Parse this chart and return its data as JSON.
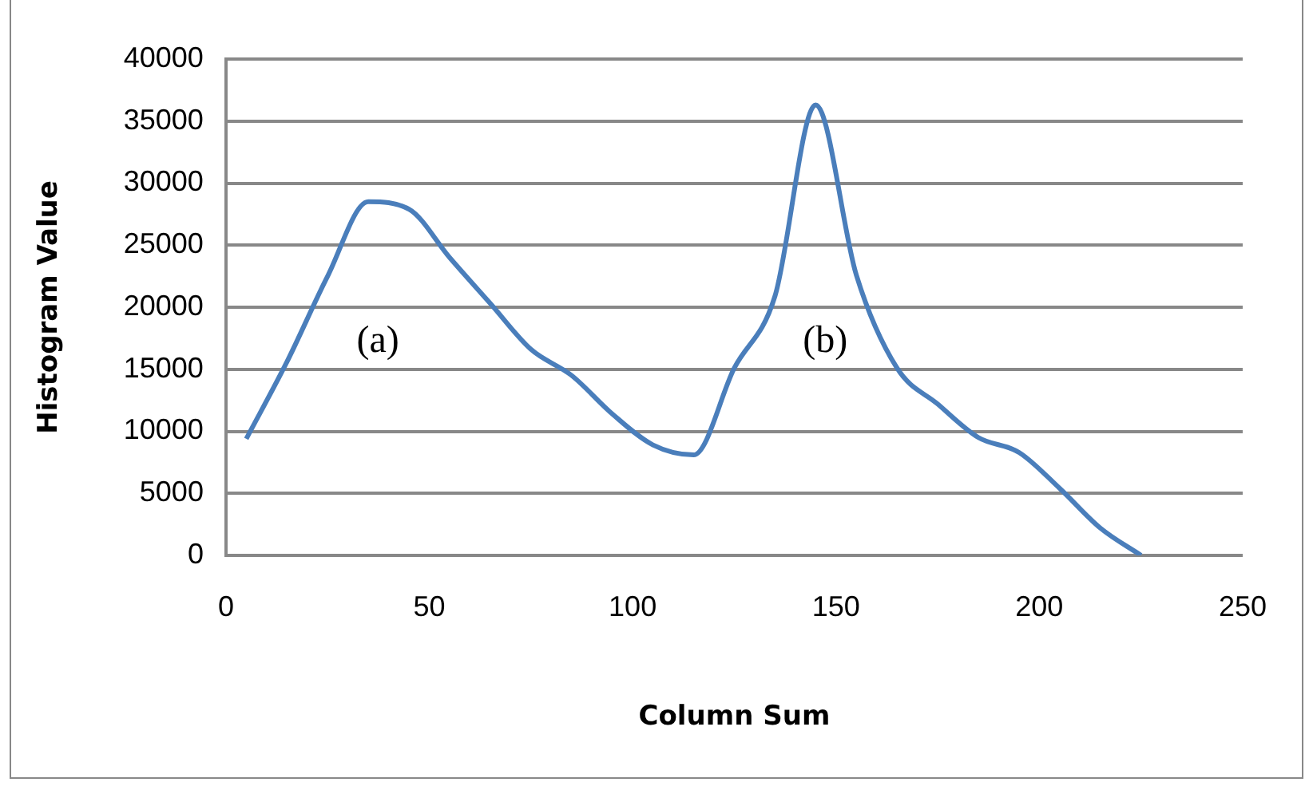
{
  "chart_data": {
    "type": "line",
    "xlabel": "Column Sum",
    "ylabel": "Histogram Value",
    "x": [
      5,
      15,
      25,
      35,
      45,
      55,
      65,
      75,
      85,
      95,
      105,
      115,
      125,
      135,
      145,
      155,
      165,
      175,
      185,
      195,
      205,
      215,
      225
    ],
    "series": [
      {
        "color": "#4a7ebb",
        "values": [
          9400,
          15600,
          22500,
          28500,
          27900,
          24000,
          20300,
          16600,
          14500,
          11400,
          8900,
          8100,
          15100,
          20900,
          36300,
          22600,
          15100,
          12200,
          9500,
          8300,
          5400,
          2200,
          0
        ]
      }
    ],
    "xlim": [
      0,
      250
    ],
    "xticks": [
      0,
      50,
      100,
      150,
      200,
      250
    ],
    "ylim": [
      0,
      40000
    ],
    "yticks": [
      0,
      5000,
      10000,
      15000,
      20000,
      25000,
      30000,
      35000,
      40000
    ],
    "grid": "y",
    "legend": false,
    "marker": "none",
    "line_style": "solid",
    "annotations": [
      "(a)",
      "(b)"
    ]
  }
}
